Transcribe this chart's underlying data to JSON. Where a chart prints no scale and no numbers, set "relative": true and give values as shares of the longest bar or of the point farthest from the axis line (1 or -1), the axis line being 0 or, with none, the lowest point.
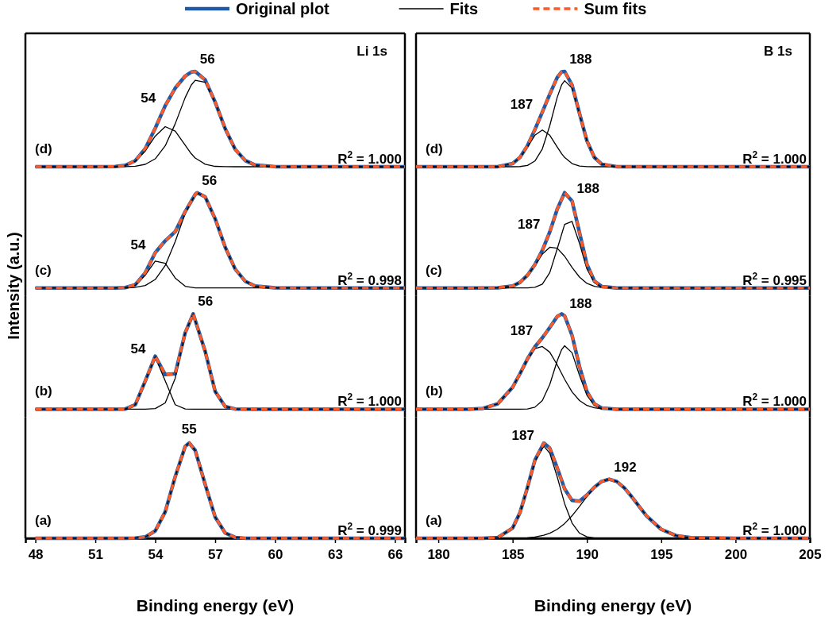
{
  "chart_data": [
    {
      "type": "line",
      "title": "Li 1s",
      "ylabel": "Intensity (a.u.)",
      "legend": "top",
      "relative": true,
      "tick_labels": false,
      "xlim": [
        47.5,
        66.5
      ],
      "x": [
        48,
        51,
        52,
        52.5,
        53,
        53.5,
        54,
        54.5,
        55,
        55.5,
        55.8,
        56,
        56.5,
        57,
        57.5,
        58,
        58.5,
        59,
        60,
        62,
        66.5
      ],
      "annotations": [
        "(d)",
        "R$^{2}$ = 1.000",
        "54",
        "56"
      ],
      "series": [
        {
          "name": "Original plot",
          "color": "#1f5aa6",
          "line_style": "solid",
          "values": [
            0,
            0,
            0.002,
            0.014,
            0.063,
            0.19,
            0.404,
            0.64,
            0.825,
            0.952,
            0.993,
            1,
            0.912,
            0.678,
            0.4,
            0.183,
            0.066,
            0.018,
            0.001,
            0,
            0
          ]
        },
        {
          "name": "Fits",
          "color": "#000000",
          "line_style": "solid",
          "values": [
            0,
            0,
            0.002,
            0.013,
            0.057,
            0.165,
            0.321,
            0.421,
            0.374,
            0.226,
            0.137,
            0.092,
            0.026,
            0.004,
            0.001,
            0,
            0,
            0,
            0,
            0,
            0
          ]
        },
        {
          "color": "#000000",
          "line_style": "solid",
          "values": [
            0,
            0,
            0,
            0.001,
            0.006,
            0.025,
            0.083,
            0.219,
            0.451,
            0.726,
            0.856,
            0.908,
            0.886,
            0.674,
            0.399,
            0.183,
            0.066,
            0.018,
            0.001,
            0,
            0
          ]
        },
        {
          "name": "Sum fits",
          "color": "#fa5a28",
          "line_style": "dashed",
          "values": [
            0,
            0,
            0.002,
            0.014,
            0.063,
            0.19,
            0.404,
            0.64,
            0.825,
            0.952,
            0.993,
            1,
            0.912,
            0.678,
            0.4,
            0.183,
            0.066,
            0.018,
            0.001,
            0,
            0
          ]
        }
      ]
    },
    {
      "type": "line",
      "title": "B 1s",
      "relative": true,
      "tick_labels": false,
      "xlim": [
        178.5,
        205
      ],
      "x": [
        178.5,
        182,
        184,
        185,
        185.5,
        186,
        186.5,
        187,
        187.5,
        188,
        188.3,
        188.5,
        189,
        189.5,
        190,
        190.5,
        191,
        192,
        193,
        195,
        205
      ],
      "annotations": [
        "(d)",
        "R$^{2}$ = 1.000",
        "187",
        "188"
      ],
      "series": [
        {
          "color": "#1f5aa6",
          "line_style": "solid",
          "values": [
            0,
            0,
            0.001,
            0.033,
            0.099,
            0.222,
            0.391,
            0.574,
            0.761,
            0.936,
            0.996,
            1,
            0.857,
            0.559,
            0.272,
            0.098,
            0.026,
            0.001,
            0,
            0,
            0
          ]
        },
        {
          "color": "#000000",
          "line_style": "solid",
          "values": [
            0,
            0,
            0.001,
            0.033,
            0.097,
            0.208,
            0.331,
            0.386,
            0.331,
            0.208,
            0.136,
            0.097,
            0.033,
            0.008,
            0.001,
            0,
            0,
            0,
            0,
            0,
            0
          ]
        },
        {
          "color": "#000000",
          "line_style": "solid",
          "values": [
            0,
            0,
            0,
            0,
            0.002,
            0.014,
            0.06,
            0.187,
            0.431,
            0.728,
            0.86,
            0.903,
            0.824,
            0.551,
            0.27,
            0.098,
            0.026,
            0.001,
            0,
            0,
            0
          ]
        },
        {
          "color": "#fa5a28",
          "line_style": "dashed",
          "values": [
            0,
            0,
            0.001,
            0.033,
            0.099,
            0.222,
            0.391,
            0.574,
            0.761,
            0.936,
            0.996,
            1,
            0.857,
            0.559,
            0.272,
            0.098,
            0.026,
            0.001,
            0,
            0,
            0
          ]
        }
      ]
    },
    {
      "type": "line",
      "relative": true,
      "tick_labels": false,
      "xlim": [
        47.5,
        66.5
      ],
      "x": [
        48,
        51,
        52,
        52.5,
        53,
        53.5,
        54,
        54.5,
        55,
        55.5,
        56,
        56.1,
        56.5,
        57,
        57.5,
        58,
        58.5,
        59,
        60,
        62,
        66.5
      ],
      "annotations": [
        "(c)",
        "R$^{2}$ = 0.998",
        "54",
        "56"
      ],
      "series": [
        {
          "color": "#1f5aa6",
          "line_style": "solid",
          "values": [
            0,
            0,
            0,
            0.004,
            0.034,
            0.159,
            0.37,
            0.495,
            0.591,
            0.801,
            0.981,
            1,
            0.956,
            0.726,
            0.43,
            0.198,
            0.071,
            0.02,
            0.001,
            0,
            0
          ]
        },
        {
          "color": "#000000",
          "line_style": "solid",
          "values": [
            0,
            0,
            0,
            0.003,
            0.028,
            0.133,
            0.281,
            0.259,
            0.104,
            0.018,
            0.001,
            0.001,
            0,
            0,
            0,
            0,
            0,
            0,
            0,
            0,
            0
          ]
        },
        {
          "color": "#000000",
          "line_style": "solid",
          "values": [
            0,
            0,
            0,
            0.001,
            0.006,
            0.026,
            0.089,
            0.236,
            0.487,
            0.783,
            0.98,
            0.999,
            0.956,
            0.726,
            0.43,
            0.198,
            0.071,
            0.02,
            0.001,
            0,
            0
          ]
        },
        {
          "color": "#fa5a28",
          "line_style": "dashed",
          "values": [
            0,
            0,
            0,
            0.004,
            0.034,
            0.159,
            0.37,
            0.495,
            0.591,
            0.801,
            0.981,
            1,
            0.956,
            0.726,
            0.43,
            0.198,
            0.071,
            0.02,
            0.001,
            0,
            0
          ]
        }
      ]
    },
    {
      "type": "line",
      "relative": true,
      "tick_labels": false,
      "xlim": [
        178.5,
        205
      ],
      "x": [
        178.5,
        182,
        184,
        185,
        185.5,
        186,
        186.5,
        187,
        187.5,
        188,
        188.5,
        189,
        189.5,
        190,
        190.5,
        191,
        192,
        193,
        195,
        205
      ],
      "annotations": [
        "(c)",
        "R$^{2}$ = 0.995",
        "187",
        "188"
      ],
      "series": [
        {
          "color": "#1f5aa6",
          "line_style": "solid",
          "values": [
            0,
            0,
            0.002,
            0.021,
            0.059,
            0.133,
            0.246,
            0.395,
            0.588,
            0.827,
            1,
            0.913,
            0.582,
            0.248,
            0.073,
            0.015,
            0,
            0,
            0,
            0
          ]
        },
        {
          "color": "#000000",
          "line_style": "solid",
          "values": [
            0,
            0,
            0.002,
            0.021,
            0.059,
            0.132,
            0.239,
            0.355,
            0.427,
            0.417,
            0.333,
            0.215,
            0.114,
            0.048,
            0.017,
            0.005,
            0,
            0,
            0,
            0
          ]
        },
        {
          "color": "#000000",
          "line_style": "solid",
          "values": [
            0,
            0,
            0,
            0,
            0,
            0.001,
            0.007,
            0.04,
            0.161,
            0.41,
            0.667,
            0.698,
            0.468,
            0.2,
            0.056,
            0.01,
            0,
            0,
            0,
            0
          ]
        },
        {
          "color": "#fa5a28",
          "line_style": "dashed",
          "values": [
            0,
            0,
            0.002,
            0.021,
            0.059,
            0.133,
            0.246,
            0.395,
            0.588,
            0.827,
            1,
            0.913,
            0.582,
            0.248,
            0.073,
            0.015,
            0,
            0,
            0,
            0
          ]
        }
      ]
    },
    {
      "type": "line",
      "relative": true,
      "tick_labels": false,
      "xlim": [
        47.5,
        66.5
      ],
      "x": [
        48,
        52,
        52.5,
        53,
        53.5,
        54,
        54.5,
        55,
        55.5,
        55.9,
        56.5,
        57,
        57.5,
        58,
        59,
        66.5
      ],
      "annotations": [
        "(b)",
        "R$^{2}$ = 1.000",
        "54",
        "56"
      ],
      "series": [
        {
          "color": "#1f5aa6",
          "line_style": "solid",
          "values": [
            0,
            0,
            0.002,
            0.047,
            0.297,
            0.557,
            0.363,
            0.372,
            0.803,
            1,
            0.607,
            0.186,
            0.028,
            0.002,
            0,
            0
          ]
        },
        {
          "color": "#000000",
          "line_style": "solid",
          "values": [
            0,
            0,
            0.002,
            0.047,
            0.297,
            0.55,
            0.297,
            0.047,
            0.002,
            0,
            0,
            0,
            0,
            0,
            0,
            0
          ]
        },
        {
          "color": "#000000",
          "line_style": "solid",
          "values": [
            0,
            0,
            0,
            0,
            0,
            0.007,
            0.066,
            0.325,
            0.801,
            1,
            0.607,
            0.186,
            0.028,
            0.002,
            0,
            0
          ]
        },
        {
          "color": "#fa5a28",
          "line_style": "dashed",
          "values": [
            0,
            0,
            0.002,
            0.047,
            0.297,
            0.557,
            0.363,
            0.372,
            0.803,
            1,
            0.607,
            0.186,
            0.028,
            0.002,
            0,
            0
          ]
        }
      ]
    },
    {
      "type": "line",
      "relative": true,
      "tick_labels": false,
      "xlim": [
        178.5,
        205
      ],
      "x": [
        178.5,
        182,
        183,
        184,
        185,
        185.5,
        186,
        186.5,
        187,
        187.5,
        188,
        188.3,
        188.5,
        189,
        189.5,
        190,
        190.5,
        191,
        192,
        193,
        195,
        205
      ],
      "annotations": [
        "(b)",
        "R$^{2}$ = 1.000",
        "187",
        "188"
      ],
      "series": [
        {
          "color": "#1f5aa6",
          "line_style": "solid",
          "values": [
            0,
            0,
            0.008,
            0.057,
            0.23,
            0.374,
            0.528,
            0.656,
            0.749,
            0.858,
            0.973,
            1,
            0.98,
            0.774,
            0.448,
            0.185,
            0.056,
            0.012,
            0,
            0,
            0,
            0
          ]
        },
        {
          "color": "#000000",
          "line_style": "solid",
          "values": [
            0,
            0,
            0.008,
            0.057,
            0.23,
            0.374,
            0.524,
            0.635,
            0.658,
            0.598,
            0.466,
            0.374,
            0.314,
            0.182,
            0.091,
            0.039,
            0.015,
            0.005,
            0,
            0,
            0,
            0
          ]
        },
        {
          "color": "#000000",
          "line_style": "solid",
          "values": [
            0,
            0,
            0,
            0,
            0,
            0,
            0.003,
            0.021,
            0.09,
            0.26,
            0.507,
            0.626,
            0.666,
            0.592,
            0.356,
            0.146,
            0.04,
            0.007,
            0,
            0,
            0,
            0
          ]
        },
        {
          "color": "#fa5a28",
          "line_style": "dashed",
          "values": [
            0,
            0,
            0.008,
            0.057,
            0.23,
            0.374,
            0.528,
            0.656,
            0.749,
            0.858,
            0.973,
            1,
            0.98,
            0.774,
            0.448,
            0.185,
            0.056,
            0.012,
            0,
            0,
            0,
            0
          ]
        }
      ]
    },
    {
      "type": "line",
      "xlabel": "Binding energy (eV)",
      "relative": true,
      "tick_labels": "x",
      "xlim": [
        47.5,
        66.5
      ],
      "xticks": [
        48,
        51,
        54,
        57,
        60,
        63,
        66
      ],
      "x": [
        48,
        52,
        52.5,
        53,
        53.5,
        54,
        54.5,
        55,
        55.5,
        55.7,
        56,
        56.5,
        57,
        57.5,
        58,
        58.5,
        59,
        66.5
      ],
      "annotations": [
        "(a)",
        "R$^{2}$ = 0.999",
        "55"
      ],
      "series": [
        {
          "color": "#1f5aa6",
          "line_style": "solid",
          "values": [
            0,
            0,
            0,
            0.002,
            0.014,
            0.077,
            0.278,
            0.647,
            0.965,
            1,
            0.923,
            0.566,
            0.223,
            0.056,
            0.009,
            0.001,
            0,
            0
          ]
        },
        {
          "color": "#000000",
          "line_style": "solid",
          "values": [
            0,
            0,
            0,
            0.002,
            0.014,
            0.077,
            0.278,
            0.647,
            0.965,
            1,
            0.923,
            0.566,
            0.223,
            0.056,
            0.009,
            0.001,
            0,
            0
          ]
        },
        {
          "color": "#fa5a28",
          "line_style": "dashed",
          "values": [
            0,
            0,
            0,
            0.002,
            0.014,
            0.077,
            0.278,
            0.647,
            0.965,
            1,
            0.923,
            0.566,
            0.223,
            0.056,
            0.009,
            0.001,
            0,
            0
          ]
        }
      ]
    },
    {
      "type": "line",
      "xlabel": "Binding energy (eV)",
      "relative": true,
      "tick_labels": "x",
      "xlim": [
        178.5,
        205
      ],
      "xticks": [
        180,
        185,
        190,
        195,
        200,
        205
      ],
      "x": [
        178.5,
        182,
        183,
        184,
        185,
        185.5,
        186,
        186.5,
        187.1,
        187.5,
        188,
        188.5,
        189,
        189.5,
        190,
        190.5,
        191,
        191.5,
        192,
        192.5,
        193,
        194,
        195,
        196,
        197,
        200,
        205
      ],
      "annotations": [
        "(a)",
        "R$^{2}$ = 1.000",
        "187",
        "192"
      ],
      "series": [
        {
          "color": "#1f5aa6",
          "line_style": "solid",
          "values": [
            0,
            0,
            0,
            0.008,
            0.108,
            0.271,
            0.535,
            0.821,
            1,
            0.946,
            0.74,
            0.518,
            0.397,
            0.389,
            0.454,
            0.535,
            0.597,
            0.62,
            0.597,
            0.532,
            0.439,
            0.237,
            0.094,
            0.028,
            0.006,
            0,
            0
          ]
        },
        {
          "color": "#000000",
          "line_style": "solid",
          "values": [
            0,
            0,
            0,
            0.008,
            0.107,
            0.269,
            0.529,
            0.808,
            0.968,
            0.893,
            0.646,
            0.363,
            0.16,
            0.054,
            0.015,
            0.003,
            0,
            0,
            0,
            0,
            0,
            0,
            0,
            0,
            0,
            0,
            0
          ]
        },
        {
          "color": "#000000",
          "line_style": "solid",
          "values": [
            0,
            0,
            0,
            0,
            0.001,
            0.002,
            0.006,
            0.013,
            0.032,
            0.053,
            0.094,
            0.155,
            0.237,
            0.335,
            0.439,
            0.532,
            0.597,
            0.62,
            0.597,
            0.532,
            0.439,
            0.237,
            0.094,
            0.028,
            0.006,
            0,
            0
          ]
        },
        {
          "color": "#fa5a28",
          "line_style": "dashed",
          "values": [
            0,
            0,
            0,
            0.008,
            0.108,
            0.271,
            0.535,
            0.821,
            1,
            0.946,
            0.74,
            0.518,
            0.397,
            0.389,
            0.454,
            0.535,
            0.597,
            0.62,
            0.597,
            0.532,
            0.439,
            0.237,
            0.094,
            0.028,
            0.006,
            0,
            0
          ]
        }
      ]
    }
  ]
}
